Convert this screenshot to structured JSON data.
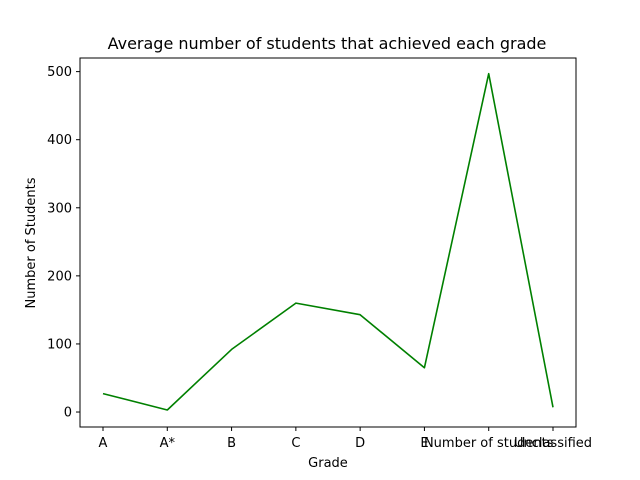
{
  "chart_data": {
    "type": "line",
    "title": "Average number of students that achieved each grade",
    "xlabel": "Grade",
    "ylabel": "Number of Students",
    "categories": [
      "A",
      "A*",
      "B",
      "C",
      "D",
      "E",
      "Number of students",
      "Unclassified"
    ],
    "series": [
      {
        "values": [
          27,
          3,
          92,
          160,
          143,
          65,
          497,
          7
        ]
      }
    ],
    "ylim": [
      -22,
      520
    ],
    "yticks": [
      0,
      100,
      200,
      300,
      400,
      500
    ],
    "line_color": "#008000",
    "grid": false,
    "legend": "none"
  }
}
